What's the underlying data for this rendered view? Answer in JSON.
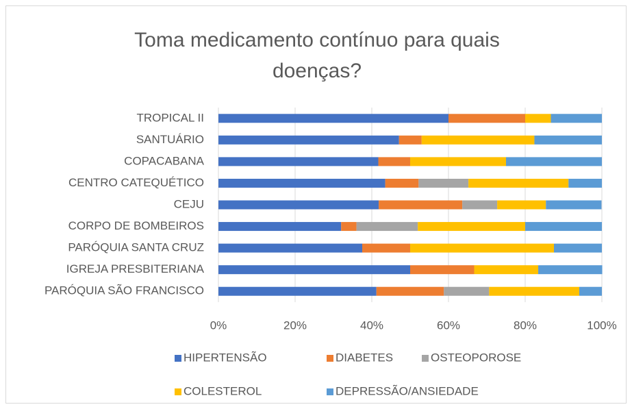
{
  "chart_data": {
    "type": "stacked_barh",
    "title": "Toma medicamento contínuo para quais doenças?",
    "categories": [
      "TROPICAL II",
      "SANTUÁRIO",
      "COPACABANA",
      "CENTRO CATEQUÉTICO",
      "CEJU",
      "CORPO DE BOMBEIROS",
      "PARÓQUIA SANTA CRUZ",
      "IGREJA PRESBITERIANA",
      "PARÓQUIA SÃO FRANCISCO"
    ],
    "series": [
      {
        "name": "HIPERTENSÃO",
        "color": "#4472c4",
        "values": [
          60,
          47.1,
          41.7,
          43.5,
          41.8,
          32,
          37.5,
          50,
          41.2
        ]
      },
      {
        "name": "DIABETES",
        "color": "#ed7d31",
        "values": [
          20,
          5.9,
          8.3,
          8.7,
          21.8,
          4,
          12.5,
          16.7,
          17.6
        ]
      },
      {
        "name": "OSTEOPOROSE",
        "color": "#a5a5a5",
        "values": [
          0,
          0,
          0,
          13,
          9.1,
          16,
          0,
          0,
          11.8
        ]
      },
      {
        "name": "COLESTEROL",
        "color": "#ffc000",
        "values": [
          6.7,
          29.4,
          25,
          26.1,
          12.7,
          28,
          37.5,
          16.7,
          23.5
        ]
      },
      {
        "name": "DEPRESSÃO/ANSIEDADE",
        "color": "#5b9bd5",
        "values": [
          13.3,
          17.6,
          25,
          8.7,
          14.5,
          20,
          12.5,
          16.7,
          5.9
        ]
      }
    ],
    "xlim": [
      0,
      100
    ],
    "xticks": [
      {
        "value": 0,
        "label": "0%"
      },
      {
        "value": 20,
        "label": "20%"
      },
      {
        "value": 40,
        "label": "40%"
      },
      {
        "value": 60,
        "label": "60%"
      },
      {
        "value": 80,
        "label": "80%"
      },
      {
        "value": 100,
        "label": "100%"
      }
    ],
    "grid": true,
    "legend": "bottom"
  }
}
